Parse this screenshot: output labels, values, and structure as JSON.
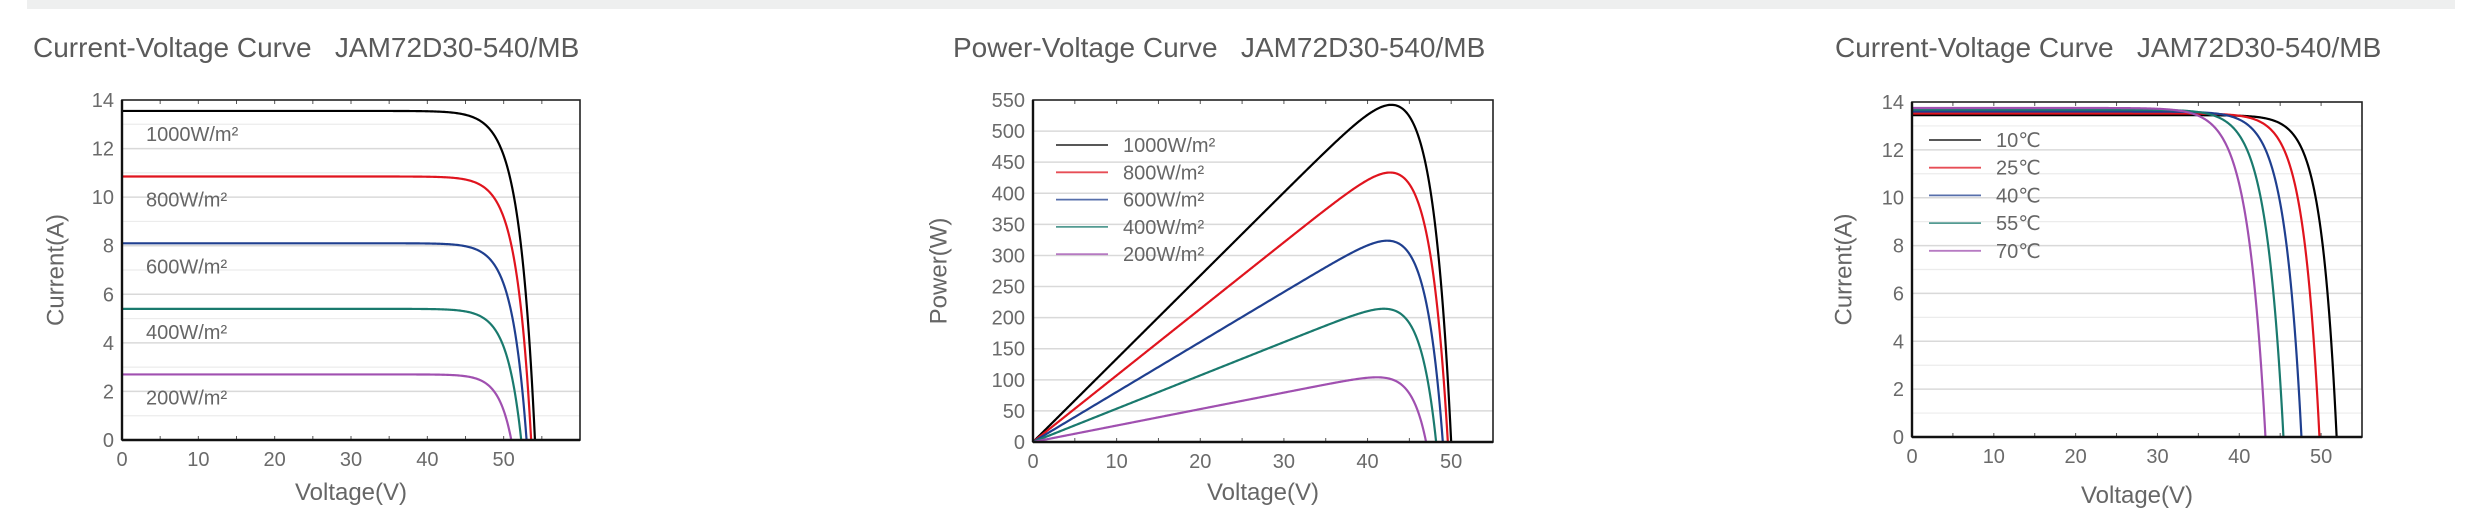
{
  "page": {
    "charts": [
      {
        "title": "Current-Voltage Curve",
        "model": "JAM72D30-540/MB"
      },
      {
        "title": "Power-Voltage Curve",
        "model": "JAM72D30-540/MB"
      },
      {
        "title": "Current-Voltage Curve",
        "model": "JAM72D30-540/MB"
      }
    ]
  },
  "chart_data": [
    {
      "type": "line",
      "title": "Current-Voltage Curve   JAM72D30-540/MB",
      "xlabel": "Voltage(V)",
      "ylabel": "Current(A)",
      "xlim": [
        0,
        60
      ],
      "ylim": [
        0,
        14
      ],
      "xticks": [
        0,
        10,
        20,
        30,
        40,
        50
      ],
      "yticks": [
        0,
        2,
        4,
        6,
        8,
        10,
        12,
        14
      ],
      "grid": true,
      "legend": "inline-labels",
      "series": [
        {
          "name": "1000W/m²",
          "color": "#000000",
          "isc": 13.55,
          "voc": 54.1,
          "knee": 45.5
        },
        {
          "name": "800W/m²",
          "color": "#e0141e",
          "isc": 10.85,
          "voc": 53.6,
          "knee": 45.5
        },
        {
          "name": "600W/m²",
          "color": "#1f3f8f",
          "isc": 8.1,
          "voc": 53.0,
          "knee": 45.0
        },
        {
          "name": "400W/m²",
          "color": "#1a7a6e",
          "isc": 5.4,
          "voc": 52.3,
          "knee": 44.5
        },
        {
          "name": "200W/m²",
          "color": "#a050b0",
          "isc": 2.7,
          "voc": 51.0,
          "knee": 44.0
        }
      ]
    },
    {
      "type": "line",
      "title": "Power-Voltage Curve   JAM72D30-540/MB",
      "xlabel": "Voltage(V)",
      "ylabel": "Power(W)",
      "xlim": [
        0,
        55
      ],
      "ylim": [
        0,
        550
      ],
      "xticks": [
        0,
        10,
        20,
        30,
        40,
        50
      ],
      "yticks": [
        0,
        50,
        100,
        150,
        200,
        250,
        300,
        350,
        400,
        450,
        500,
        550
      ],
      "grid": true,
      "legend": "top-left",
      "series": [
        {
          "name": "1000W/m²",
          "color": "#000000",
          "pmax": 540,
          "vmp": 41.9,
          "voc": 50.0
        },
        {
          "name": "800W/m²",
          "color": "#e0141e",
          "pmax": 432,
          "vmp": 41.9,
          "voc": 49.6
        },
        {
          "name": "600W/m²",
          "color": "#1f3f8f",
          "pmax": 323,
          "vmp": 41.7,
          "voc": 49.0
        },
        {
          "name": "400W/m²",
          "color": "#1a7a6e",
          "pmax": 214,
          "vmp": 41.5,
          "voc": 48.2
        },
        {
          "name": "200W/m²",
          "color": "#a050b0",
          "pmax": 104,
          "vmp": 40.8,
          "voc": 47.0
        }
      ]
    },
    {
      "type": "line",
      "title": "Current-Voltage Curve   JAM72D30-540/MB",
      "xlabel": "Voltage(V)",
      "ylabel": "Current(A)",
      "xlim": [
        0,
        55
      ],
      "ylim": [
        0,
        14
      ],
      "xticks": [
        0,
        10,
        20,
        30,
        40,
        50
      ],
      "yticks": [
        0,
        2,
        4,
        6,
        8,
        10,
        12,
        14
      ],
      "grid": true,
      "legend": "top-left",
      "series": [
        {
          "name": "10℃",
          "color": "#000000",
          "isc": 13.45,
          "voc": 51.9,
          "knee": 44.0
        },
        {
          "name": "25℃",
          "color": "#e0141e",
          "isc": 13.52,
          "voc": 49.8,
          "knee": 41.5
        },
        {
          "name": "40℃",
          "color": "#1f3f8f",
          "isc": 13.6,
          "voc": 47.6,
          "knee": 39.0
        },
        {
          "name": "55℃",
          "color": "#1a7a6e",
          "isc": 13.68,
          "voc": 45.4,
          "knee": 36.5
        },
        {
          "name": "70℃",
          "color": "#a050b0",
          "isc": 13.75,
          "voc": 43.2,
          "knee": 34.0
        }
      ]
    }
  ]
}
